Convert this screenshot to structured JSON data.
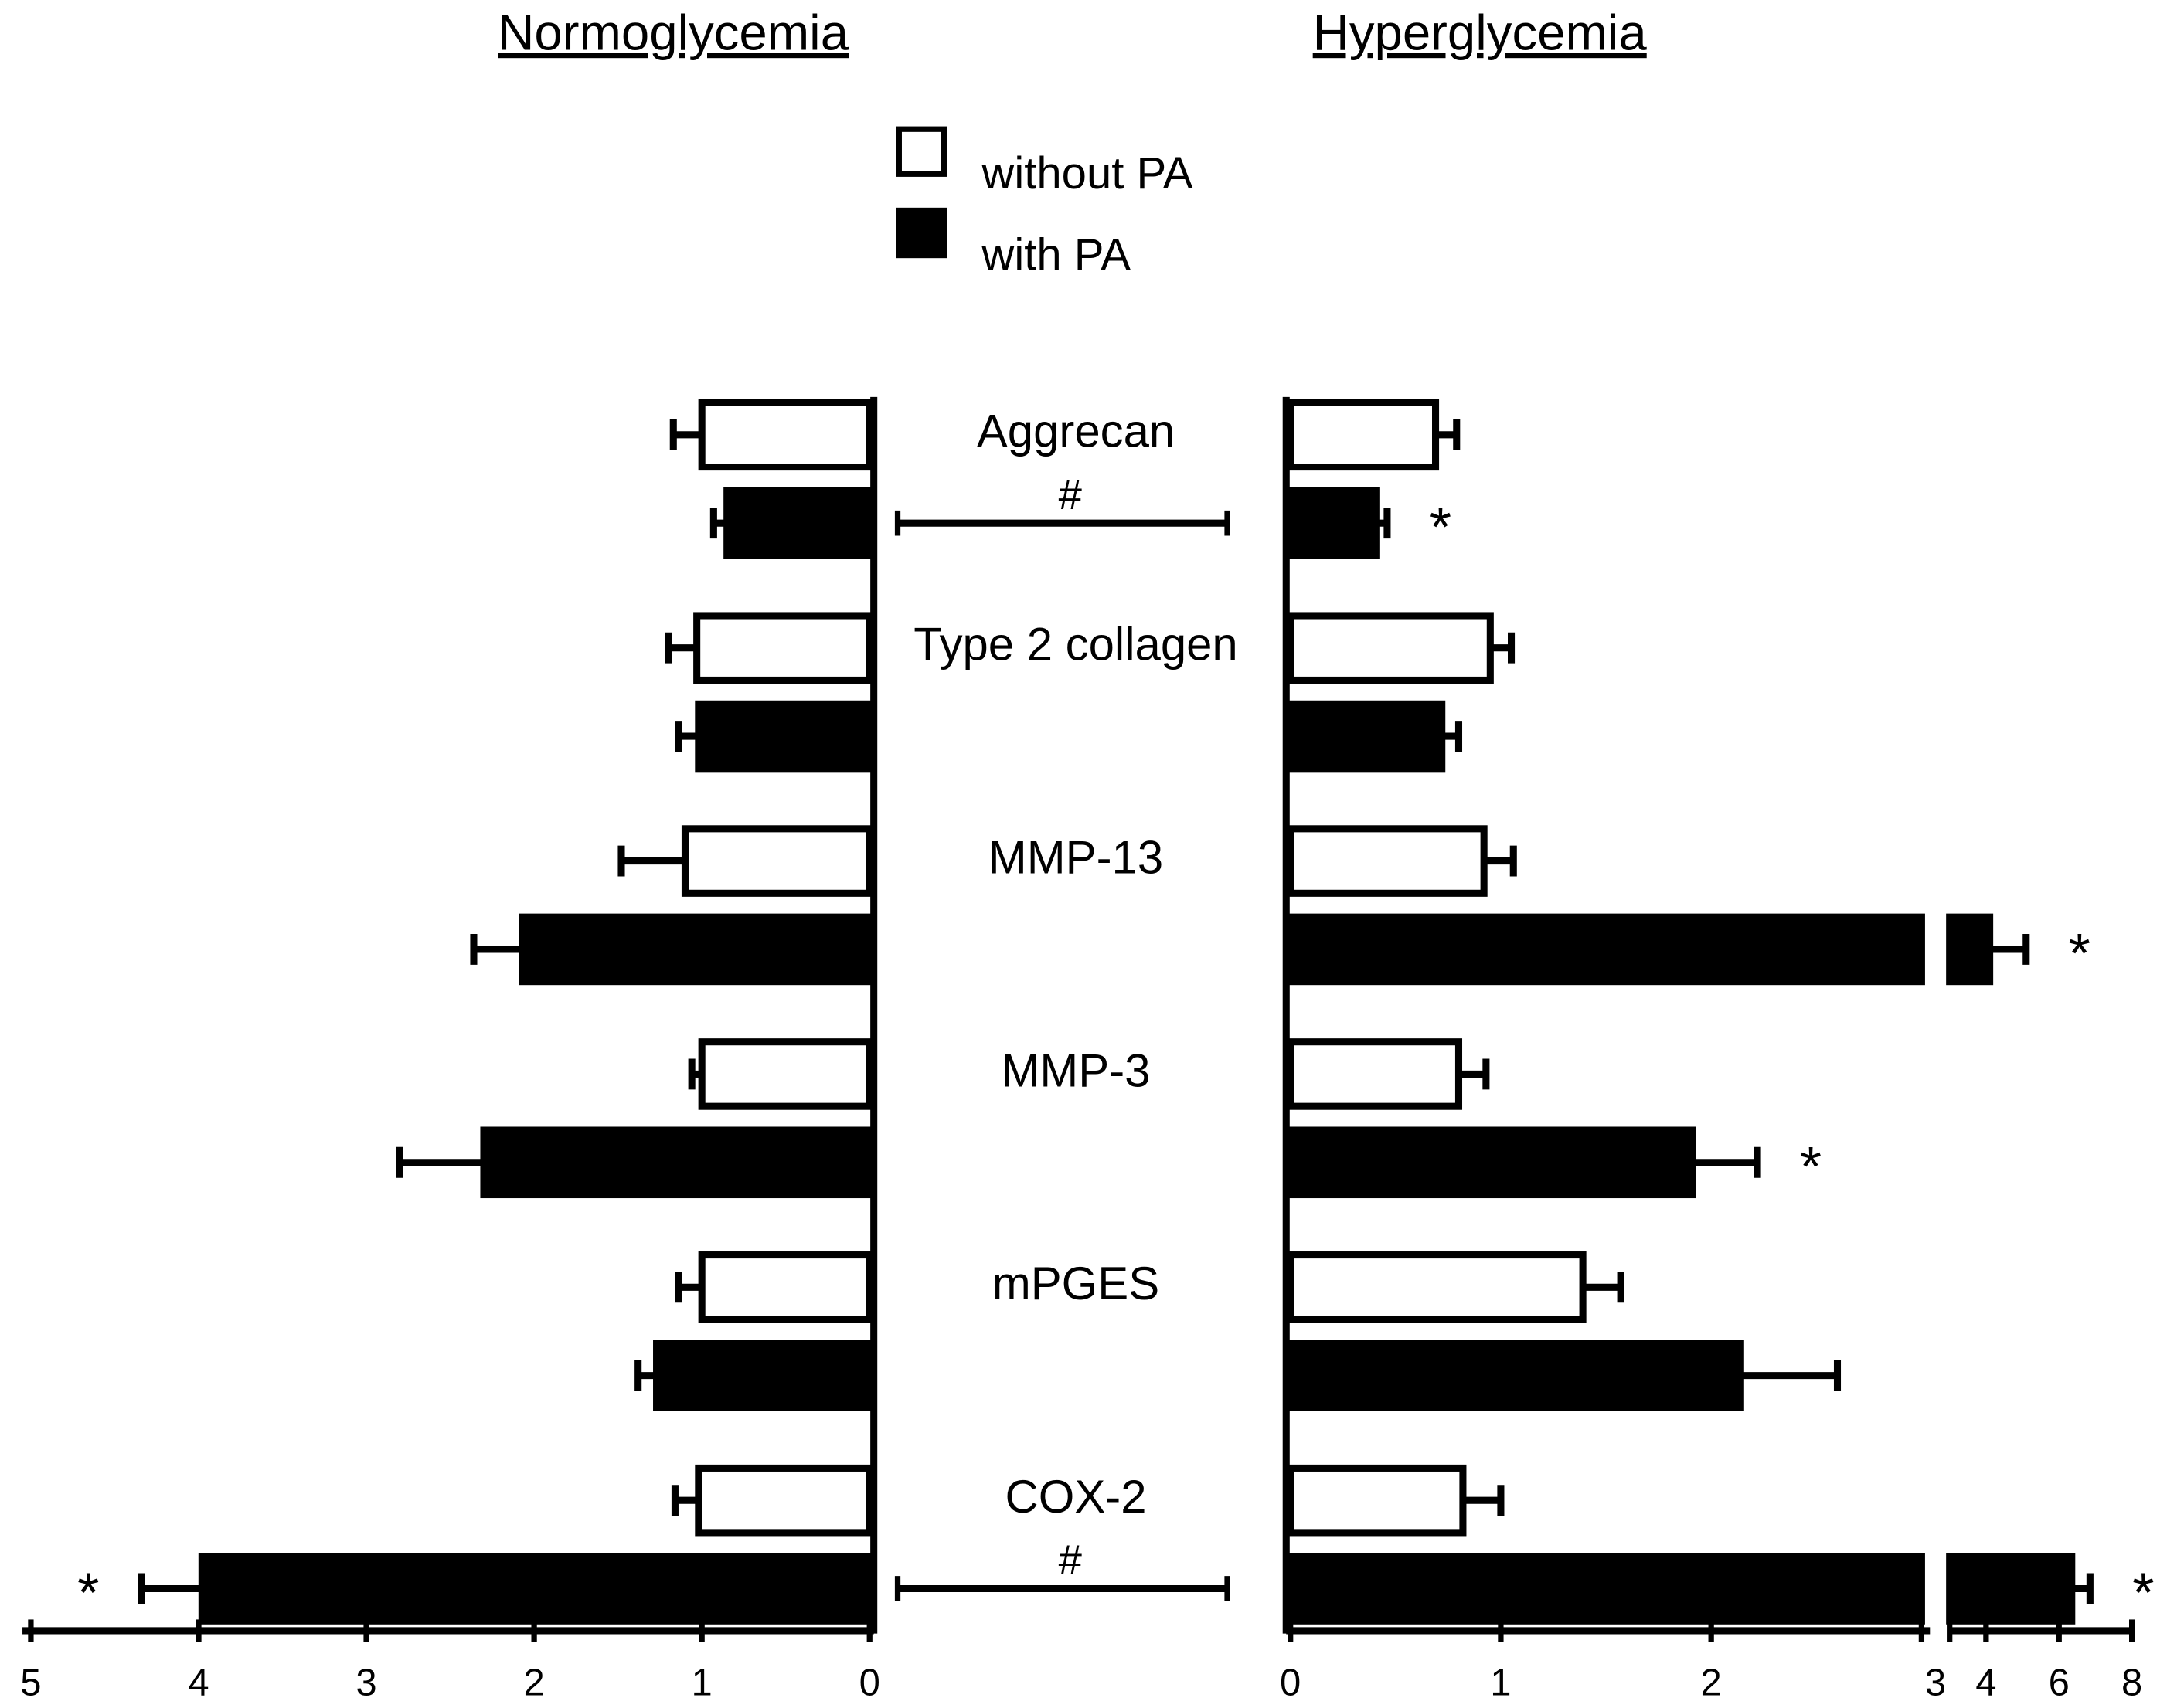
{
  "chart_data": {
    "type": "bar",
    "orientation": "horizontal",
    "categories": [
      "Aggrecan",
      "Type 2 collagen",
      "MMP-13",
      "MMP-3",
      "mPGES",
      "COX-2"
    ],
    "series": [
      {
        "name": "without PA",
        "color": "#ffffff"
      },
      {
        "name": "with PA",
        "color": "#000000"
      }
    ],
    "comparison_labels": [
      "#",
      null,
      null,
      null,
      null,
      "#"
    ],
    "panels": [
      {
        "title": "Normoglycemia",
        "x_reversed": true,
        "xlim": [
          0,
          5
        ],
        "xticks": [
          0,
          1,
          2,
          3,
          4,
          5
        ],
        "values": [
          [
            1.0,
            1.03,
            1.1,
            1.0,
            1.0,
            1.02
          ],
          [
            0.85,
            1.02,
            2.07,
            2.3,
            1.27,
            3.98
          ]
        ],
        "errors": [
          [
            0.17,
            0.17,
            0.38,
            0.06,
            0.14,
            0.14
          ],
          [
            0.08,
            0.12,
            0.29,
            0.5,
            0.11,
            0.36
          ]
        ],
        "significance": [
          [
            null,
            null,
            null,
            null,
            null,
            null
          ],
          [
            null,
            null,
            null,
            null,
            null,
            "*"
          ]
        ]
      },
      {
        "title": "Hyperglycemia",
        "x_reversed": false,
        "xlim": [
          0,
          3
        ],
        "xticks": [
          0,
          1,
          2,
          3
        ],
        "xlim_break": [
          3,
          8
        ],
        "xticks_break": [
          4,
          6,
          8
        ],
        "values": [
          [
            0.69,
            0.95,
            0.92,
            0.8,
            1.39,
            0.82
          ],
          [
            0.41,
            0.72,
            4.1,
            1.91,
            2.14,
            6.35
          ]
        ],
        "errors": [
          [
            0.1,
            0.1,
            0.14,
            0.13,
            0.18,
            0.18
          ],
          [
            0.05,
            0.08,
            1.0,
            0.31,
            0.46,
            0.5
          ]
        ],
        "significance": [
          [
            null,
            null,
            null,
            null,
            null,
            null
          ],
          [
            "*",
            null,
            "*",
            "*",
            null,
            "*"
          ]
        ]
      }
    ]
  }
}
